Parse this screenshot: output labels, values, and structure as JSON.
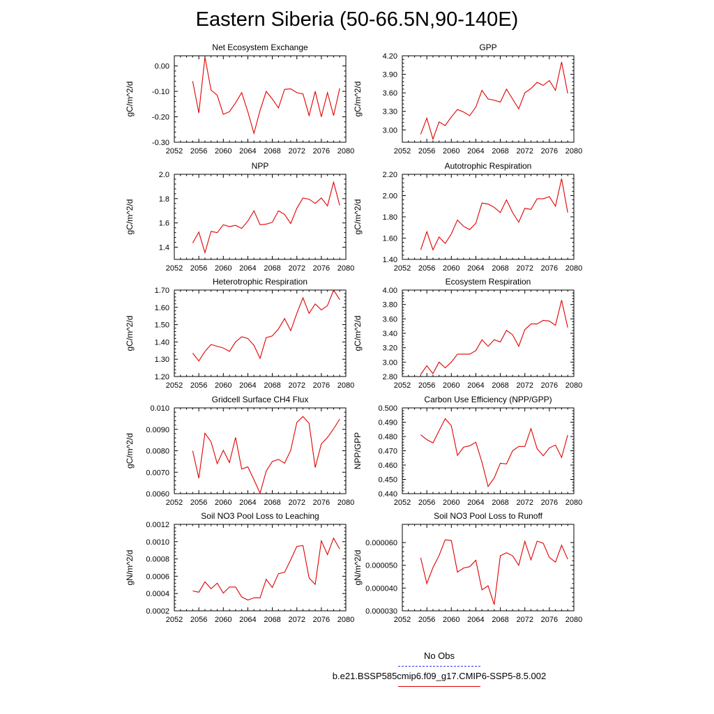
{
  "title": "Eastern Siberia (50-66.5N,90-140E)",
  "legend": {
    "obs_label": "No Obs",
    "obs_color": "#3333ff",
    "model_label": "b.e21.BSSP585cmip6.f09_g17.CMIP6-SSP5-8.5.002",
    "model_color": "#e00000"
  },
  "chart_data": [
    {
      "type": "line",
      "title": "Net Ecosystem Exchange",
      "ylabel": "gC/m^2/d",
      "xlim": [
        2052,
        2080
      ],
      "ylim": [
        -0.3,
        0.04
      ],
      "xticks": [
        "2052",
        "2056",
        "2060",
        "2064",
        "2068",
        "2072",
        "2076",
        "2080"
      ],
      "yticks": [
        -0.3,
        -0.2,
        -0.1,
        0.0
      ],
      "ytick_labels": [
        "-0.30",
        "-0.20",
        "-0.10",
        "0.00"
      ],
      "x": [
        2055,
        2056,
        2057,
        2058,
        2059,
        2060,
        2061,
        2062,
        2063,
        2064,
        2065,
        2066,
        2067,
        2068,
        2069,
        2070,
        2071,
        2072,
        2073,
        2074,
        2075,
        2076,
        2077,
        2078,
        2079
      ],
      "series": [
        {
          "color": "#e00000",
          "values": [
            -0.06,
            -0.185,
            0.035,
            -0.095,
            -0.115,
            -0.19,
            -0.18,
            -0.145,
            -0.105,
            -0.18,
            -0.265,
            -0.175,
            -0.1,
            -0.13,
            -0.165,
            -0.092,
            -0.09,
            -0.105,
            -0.11,
            -0.195,
            -0.1,
            -0.2,
            -0.105,
            -0.195,
            -0.088
          ]
        }
      ]
    },
    {
      "type": "line",
      "title": "GPP",
      "ylabel": "gC/m^2/d",
      "xlim": [
        2052,
        2080
      ],
      "ylim": [
        2.8,
        4.2
      ],
      "xticks": [
        "2052",
        "2056",
        "2060",
        "2064",
        "2068",
        "2072",
        "2076",
        "2080"
      ],
      "yticks": [
        3.0,
        3.3,
        3.6,
        3.9,
        4.2
      ],
      "ytick_labels": [
        "3.00",
        "3.30",
        "3.60",
        "3.90",
        "4.20"
      ],
      "x": [
        2055,
        2056,
        2057,
        2058,
        2059,
        2060,
        2061,
        2062,
        2063,
        2064,
        2065,
        2066,
        2067,
        2068,
        2069,
        2070,
        2071,
        2072,
        2073,
        2074,
        2075,
        2076,
        2077,
        2078,
        2079
      ],
      "series": [
        {
          "color": "#e00000",
          "values": [
            2.93,
            3.19,
            2.85,
            3.13,
            3.07,
            3.21,
            3.33,
            3.29,
            3.23,
            3.37,
            3.64,
            3.5,
            3.48,
            3.45,
            3.66,
            3.5,
            3.34,
            3.6,
            3.67,
            3.77,
            3.72,
            3.8,
            3.64,
            4.1,
            3.59
          ]
        }
      ]
    },
    {
      "type": "line",
      "title": "NPP",
      "ylabel": "gC/m^2/d",
      "xlim": [
        2052,
        2080
      ],
      "ylim": [
        1.3,
        2.0
      ],
      "xticks": [
        "2052",
        "2056",
        "2060",
        "2064",
        "2068",
        "2072",
        "2076",
        "2080"
      ],
      "yticks": [
        1.4,
        1.6,
        1.8,
        2.0
      ],
      "ytick_labels": [
        "1.4",
        "1.6",
        "1.8",
        "2.0"
      ],
      "x": [
        2055,
        2056,
        2057,
        2058,
        2059,
        2060,
        2061,
        2062,
        2063,
        2064,
        2065,
        2066,
        2067,
        2068,
        2069,
        2070,
        2071,
        2072,
        2073,
        2074,
        2075,
        2076,
        2077,
        2078,
        2079
      ],
      "series": [
        {
          "color": "#e00000",
          "values": [
            1.435,
            1.525,
            1.355,
            1.53,
            1.52,
            1.585,
            1.57,
            1.58,
            1.555,
            1.615,
            1.7,
            1.585,
            1.59,
            1.605,
            1.7,
            1.67,
            1.595,
            1.72,
            1.805,
            1.795,
            1.76,
            1.805,
            1.74,
            1.935,
            1.745
          ]
        }
      ]
    },
    {
      "type": "line",
      "title": "Autotrophic Respiration",
      "ylabel": "gC/m^2/d",
      "xlim": [
        2052,
        2080
      ],
      "ylim": [
        1.4,
        2.2
      ],
      "xticks": [
        "2052",
        "2056",
        "2060",
        "2064",
        "2068",
        "2072",
        "2076",
        "2080"
      ],
      "yticks": [
        1.4,
        1.6,
        1.8,
        2.0,
        2.2
      ],
      "ytick_labels": [
        "1.40",
        "1.60",
        "1.80",
        "2.00",
        "2.20"
      ],
      "x": [
        2055,
        2056,
        2057,
        2058,
        2059,
        2060,
        2061,
        2062,
        2063,
        2064,
        2065,
        2066,
        2067,
        2068,
        2069,
        2070,
        2071,
        2072,
        2073,
        2074,
        2075,
        2076,
        2077,
        2078,
        2079
      ],
      "series": [
        {
          "color": "#e00000",
          "values": [
            1.49,
            1.66,
            1.49,
            1.61,
            1.55,
            1.64,
            1.77,
            1.71,
            1.68,
            1.74,
            1.93,
            1.92,
            1.89,
            1.84,
            1.96,
            1.84,
            1.75,
            1.88,
            1.87,
            1.97,
            1.97,
            1.99,
            1.9,
            2.16,
            1.84
          ]
        }
      ]
    },
    {
      "type": "line",
      "title": "Heterotrophic Respiration",
      "ylabel": "gC/m^2/d",
      "xlim": [
        2052,
        2080
      ],
      "ylim": [
        1.2,
        1.7
      ],
      "xticks": [
        "2052",
        "2056",
        "2060",
        "2064",
        "2068",
        "2072",
        "2076",
        "2080"
      ],
      "yticks": [
        1.2,
        1.3,
        1.4,
        1.5,
        1.6,
        1.7
      ],
      "ytick_labels": [
        "1.20",
        "1.30",
        "1.40",
        "1.50",
        "1.60",
        "1.70"
      ],
      "x": [
        2055,
        2056,
        2057,
        2058,
        2059,
        2060,
        2061,
        2062,
        2063,
        2064,
        2065,
        2066,
        2067,
        2068,
        2069,
        2070,
        2071,
        2072,
        2073,
        2074,
        2075,
        2076,
        2077,
        2078,
        2079
      ],
      "series": [
        {
          "color": "#e00000",
          "values": [
            1.335,
            1.29,
            1.345,
            1.385,
            1.375,
            1.365,
            1.345,
            1.4,
            1.43,
            1.42,
            1.38,
            1.305,
            1.425,
            1.435,
            1.475,
            1.535,
            1.465,
            1.565,
            1.655,
            1.565,
            1.62,
            1.585,
            1.61,
            1.7,
            1.645
          ]
        }
      ]
    },
    {
      "type": "line",
      "title": "Ecosystem Respiration",
      "ylabel": "gC/m^2/d",
      "xlim": [
        2052,
        2080
      ],
      "ylim": [
        2.8,
        4.0
      ],
      "xticks": [
        "2052",
        "2056",
        "2060",
        "2064",
        "2068",
        "2072",
        "2076",
        "2080"
      ],
      "yticks": [
        2.8,
        3.0,
        3.2,
        3.4,
        3.6,
        3.8,
        4.0
      ],
      "ytick_labels": [
        "2.80",
        "3.00",
        "3.20",
        "3.40",
        "3.60",
        "3.80",
        "4.00"
      ],
      "x": [
        2055,
        2056,
        2057,
        2058,
        2059,
        2060,
        2061,
        2062,
        2063,
        2064,
        2065,
        2066,
        2067,
        2068,
        2069,
        2070,
        2071,
        2072,
        2073,
        2074,
        2075,
        2076,
        2077,
        2078,
        2079
      ],
      "series": [
        {
          "color": "#e00000",
          "values": [
            2.83,
            2.95,
            2.84,
            3.0,
            2.92,
            3.0,
            3.11,
            3.11,
            3.11,
            3.16,
            3.31,
            3.22,
            3.31,
            3.28,
            3.44,
            3.38,
            3.22,
            3.45,
            3.53,
            3.53,
            3.58,
            3.57,
            3.51,
            3.86,
            3.48
          ]
        }
      ]
    },
    {
      "type": "line",
      "title": "Gridcell Surface CH4 Flux",
      "ylabel": "gC/m^2/d",
      "xlim": [
        2052,
        2080
      ],
      "ylim": [
        0.006,
        0.01
      ],
      "xticks": [
        "2052",
        "2056",
        "2060",
        "2064",
        "2068",
        "2072",
        "2076",
        "2080"
      ],
      "yticks": [
        0.006,
        0.007,
        0.008,
        0.009,
        0.01
      ],
      "ytick_labels": [
        "0.0060",
        "0.0070",
        "0.0080",
        "0.0090",
        "0.010"
      ],
      "x": [
        2055,
        2056,
        2057,
        2058,
        2059,
        2060,
        2061,
        2062,
        2063,
        2064,
        2065,
        2066,
        2067,
        2068,
        2069,
        2070,
        2071,
        2072,
        2073,
        2074,
        2075,
        2076,
        2077,
        2078,
        2079
      ],
      "series": [
        {
          "color": "#e00000",
          "values": [
            0.008,
            0.00672,
            0.00882,
            0.00842,
            0.0074,
            0.00802,
            0.00745,
            0.00862,
            0.00715,
            0.00725,
            0.00665,
            0.00602,
            0.00705,
            0.0075,
            0.0076,
            0.00742,
            0.00802,
            0.00932,
            0.0096,
            0.00928,
            0.00722,
            0.00832,
            0.00862,
            0.00902,
            0.00948
          ]
        }
      ]
    },
    {
      "type": "line",
      "title": "Carbon Use Efficiency (NPP/GPP)",
      "ylabel": "NPP/GPP",
      "xlim": [
        2052,
        2080
      ],
      "ylim": [
        0.44,
        0.5
      ],
      "xticks": [
        "2052",
        "2056",
        "2060",
        "2064",
        "2068",
        "2072",
        "2076",
        "2080"
      ],
      "yticks": [
        0.44,
        0.45,
        0.46,
        0.47,
        0.48,
        0.49,
        0.5
      ],
      "ytick_labels": [
        "0.440",
        "0.450",
        "0.460",
        "0.470",
        "0.480",
        "0.490",
        "0.500"
      ],
      "x": [
        2055,
        2056,
        2057,
        2058,
        2059,
        2060,
        2061,
        2062,
        2063,
        2064,
        2065,
        2066,
        2067,
        2068,
        2069,
        2070,
        2071,
        2072,
        2073,
        2074,
        2075,
        2076,
        2077,
        2078,
        2079
      ],
      "series": [
        {
          "color": "#e00000",
          "values": [
            0.4812,
            0.4778,
            0.4755,
            0.484,
            0.4925,
            0.4875,
            0.4668,
            0.4725,
            0.4735,
            0.476,
            0.462,
            0.445,
            0.451,
            0.4613,
            0.4608,
            0.47,
            0.473,
            0.473,
            0.4855,
            0.4715,
            0.4665,
            0.472,
            0.474,
            0.4653,
            0.481
          ]
        }
      ]
    },
    {
      "type": "line",
      "title": "Soil NO3 Pool Loss to Leaching",
      "ylabel": "gN/m^2/d",
      "xlim": [
        2052,
        2080
      ],
      "ylim": [
        0.0002,
        0.0012
      ],
      "xticks": [
        "2052",
        "2056",
        "2060",
        "2064",
        "2068",
        "2072",
        "2076",
        "2080"
      ],
      "yticks": [
        0.0002,
        0.0004,
        0.0006,
        0.0008,
        0.001,
        0.0012
      ],
      "ytick_labels": [
        "0.0002",
        "0.0004",
        "0.0006",
        "0.0008",
        "0.0010",
        "0.0012"
      ],
      "x": [
        2055,
        2056,
        2057,
        2058,
        2059,
        2060,
        2061,
        2062,
        2063,
        2064,
        2065,
        2066,
        2067,
        2068,
        2069,
        2070,
        2071,
        2072,
        2073,
        2074,
        2075,
        2076,
        2077,
        2078,
        2079
      ],
      "series": [
        {
          "color": "#e00000",
          "values": [
            0.00043,
            0.000415,
            0.000535,
            0.000455,
            0.00052,
            0.000405,
            0.000475,
            0.000475,
            0.00036,
            0.000325,
            0.00035,
            0.00035,
            0.000565,
            0.00047,
            0.00063,
            0.000645,
            0.00079,
            0.000945,
            0.000955,
            0.00058,
            0.000505,
            0.00101,
            0.00085,
            0.00104,
            0.000915
          ]
        }
      ]
    },
    {
      "type": "line",
      "title": "Soil NO3 Pool Loss to Runoff",
      "ylabel": "gN/m^2/d",
      "xlim": [
        2052,
        2080
      ],
      "ylim": [
        3e-05,
        6.8e-05
      ],
      "xticks": [
        "2052",
        "2056",
        "2060",
        "2064",
        "2068",
        "2072",
        "2076",
        "2080"
      ],
      "yticks": [
        3e-05,
        4e-05,
        5e-05,
        6e-05
      ],
      "ytick_labels": [
        "0.000030",
        "0.000040",
        "0.000050",
        "0.000060"
      ],
      "x": [
        2055,
        2056,
        2057,
        2058,
        2059,
        2060,
        2061,
        2062,
        2063,
        2064,
        2065,
        2066,
        2067,
        2068,
        2069,
        2070,
        2071,
        2072,
        2073,
        2074,
        2075,
        2076,
        2077,
        2078,
        2079
      ],
      "series": [
        {
          "color": "#e00000",
          "values": [
            5.33e-05,
            4.2e-05,
            4.9e-05,
            5.43e-05,
            6.12e-05,
            6.09e-05,
            4.7e-05,
            4.88e-05,
            4.94e-05,
            5.22e-05,
            3.92e-05,
            4.1e-05,
            3.27e-05,
            5.42e-05,
            5.55e-05,
            5.42e-05,
            5e-05,
            6.05e-05,
            5.24e-05,
            6.06e-05,
            5.97e-05,
            5.35e-05,
            5.14e-05,
            5.88e-05,
            5.27e-05
          ]
        }
      ]
    }
  ]
}
